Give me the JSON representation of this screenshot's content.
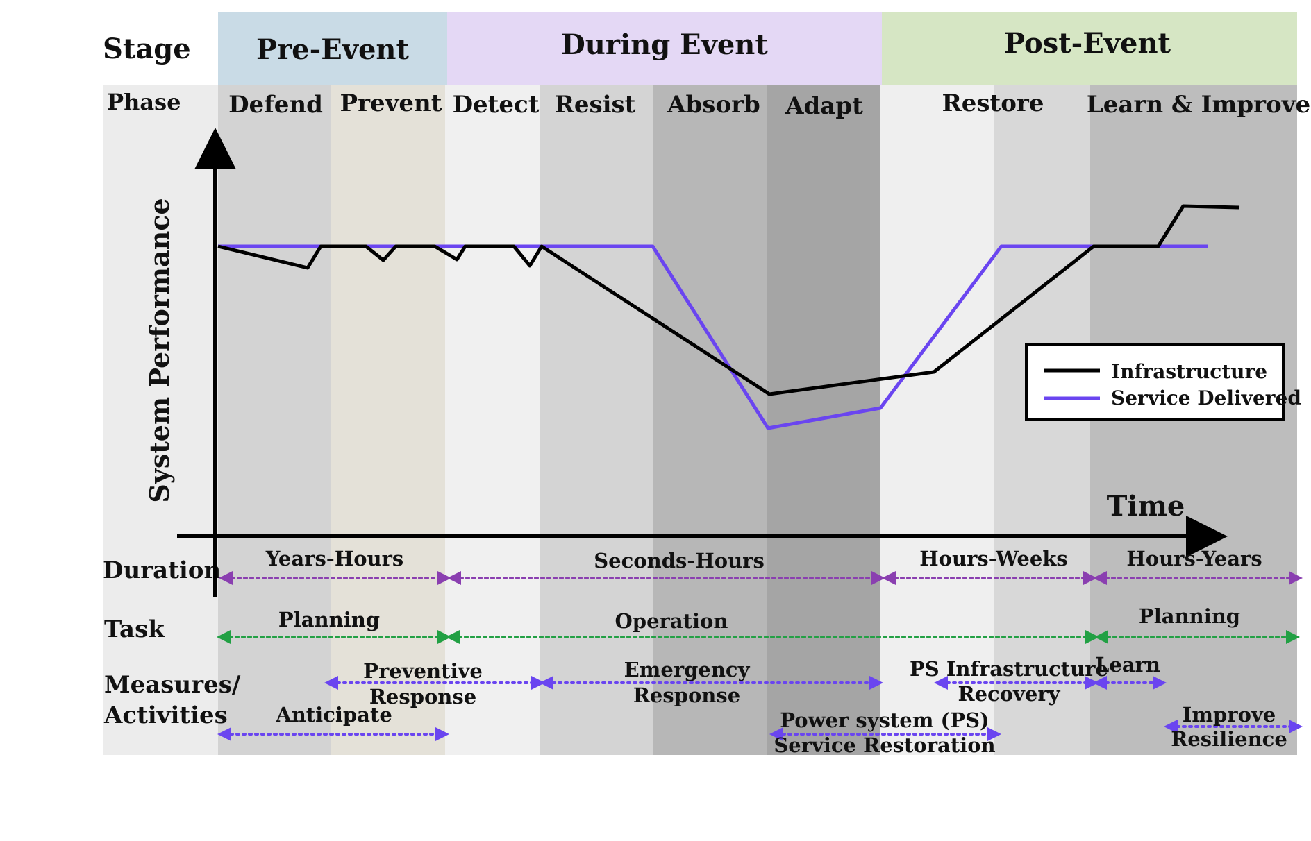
{
  "row_labels": {
    "stage": "Stage",
    "phase": "Phase",
    "duration": "Duration",
    "task": "Task",
    "measures_line1": "Measures/",
    "measures_line2": "Activities"
  },
  "stages": [
    "Pre-Event",
    "During Event",
    "Post-Event"
  ],
  "stage_colors": [
    "#c9dbe6",
    "#e4d8f5",
    "#d6e6c4"
  ],
  "phases": [
    "Defend",
    "Prevent",
    "Detect",
    "Resist",
    "Absorb",
    "Adapt",
    "Restore",
    "Learn & Improve"
  ],
  "axes": {
    "y_label": "System Performance",
    "x_label": "Time"
  },
  "legend": {
    "infrastructure": "Infrastructure",
    "service": "Service Delivered"
  },
  "line_colors": {
    "infrastructure": "#000000",
    "service": "#6a45f0"
  },
  "arrow_colors": {
    "duration": "#8a3fb0",
    "task": "#22a044",
    "measures": "#6a45f0"
  },
  "duration": [
    "Years-Hours",
    "Seconds-Hours",
    "Hours-Weeks",
    "Hours-Years"
  ],
  "task": [
    "Planning",
    "Operation",
    "Planning"
  ],
  "measures": {
    "preventive_1": "Preventive",
    "preventive_2": "Response",
    "anticipate": "Anticipate",
    "emergency_1": "Emergency",
    "emergency_2": "Response",
    "ps_service_1": "Power system (PS)",
    "ps_service_2": "Service Restoration",
    "ps_infra_1": "PS Infrastructure",
    "ps_infra_2": "Recovery",
    "learn": "Learn",
    "improve_1": "Improve",
    "improve_2": "Resilience"
  }
}
